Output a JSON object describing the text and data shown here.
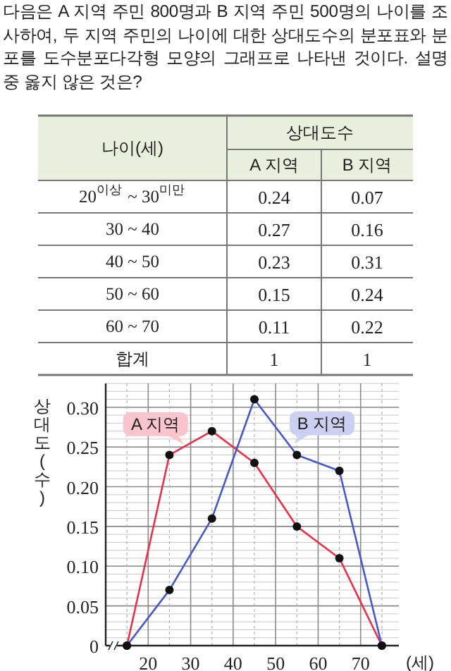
{
  "chart_data": [
    {
      "type": "other",
      "title": "다음은 A 지역 주민 800명과 B 지역 주민 500명의 나이를 조사하여, 두 지역 주민의 나이에 대한 상대도수의 분포표와 분포를 도수분포다각형 모양의 그래프로 나타낸 것이다. 설명 중 옳지 않은 것은?",
      "annotations": [
        "나이(세)",
        "상대도수",
        "합계"
      ],
      "categories": [
        "20$^{이상}$ ~ 30$^{미만}$",
        "30 ~ 40",
        "40 ~ 50",
        "50 ~ 60",
        "60 ~ 70"
      ],
      "series": [
        {
          "name": "A 지역",
          "values": [
            0.24,
            0.27,
            0.23,
            0.15,
            0.11
          ]
        },
        {
          "name": "B 지역",
          "values": [
            0.07,
            0.16,
            0.31,
            0.24,
            0.22
          ]
        }
      ],
      "totals": [
        "1",
        "1"
      ],
      "data_labels": true
    },
    {
      "type": "line",
      "xlabel": "(세)",
      "ylabel": "상대도(수)",
      "x": [
        15,
        25,
        35,
        45,
        55,
        65,
        75
      ],
      "series": [
        {
          "name": "A 지역",
          "color": "#e8304a",
          "values": [
            0,
            0.24,
            0.27,
            0.23,
            0.15,
            0.11,
            0
          ]
        },
        {
          "name": "B 지역",
          "color": "#4658c8",
          "values": [
            0,
            0.07,
            0.16,
            0.31,
            0.24,
            0.22,
            0
          ]
        }
      ],
      "xlim": [
        10,
        79
      ],
      "ylim": [
        0,
        0.33
      ],
      "xticks": [
        20,
        30,
        40,
        50,
        60,
        70
      ],
      "yticks": [
        0,
        0.05,
        {
          "value": 0.1,
          "label": "0.10"
        },
        0.15,
        {
          "value": 0.2,
          "label": "0.20"
        },
        0.25,
        {
          "value": 0.3,
          "label": "0.30"
        }
      ],
      "grid": true,
      "marker": "circle",
      "line_style": "solid"
    }
  ]
}
